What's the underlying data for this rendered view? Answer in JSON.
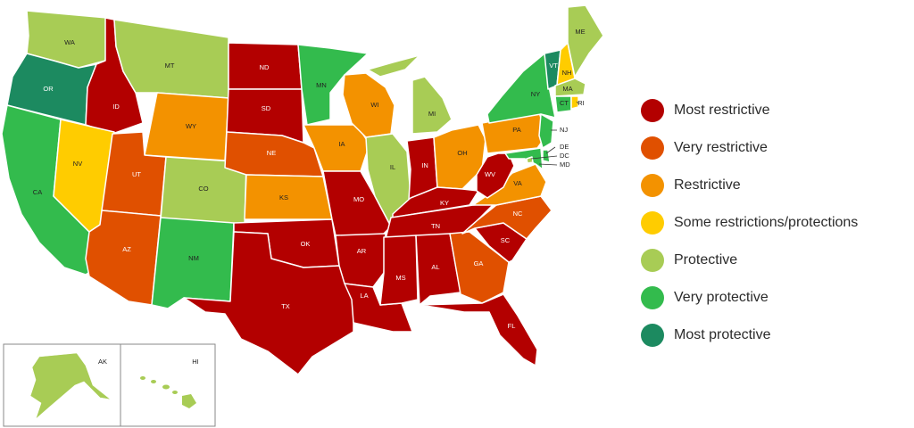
{
  "categories": [
    {
      "key": "most_restrictive",
      "label": "Most restrictive",
      "color": "#b30000"
    },
    {
      "key": "very_restrictive",
      "label": "Very restrictive",
      "color": "#e05000"
    },
    {
      "key": "restrictive",
      "label": "Restrictive",
      "color": "#f39200"
    },
    {
      "key": "some",
      "label": "Some restrictions/protections",
      "color": "#ffcc00"
    },
    {
      "key": "protective",
      "label": "Protective",
      "color": "#a8cc55"
    },
    {
      "key": "very_protective",
      "label": "Very protective",
      "color": "#33bb4d"
    },
    {
      "key": "most_protective",
      "label": "Most protective",
      "color": "#1c8a60"
    }
  ],
  "states": [
    {
      "code": "WA",
      "label": "WA",
      "category": "protective"
    },
    {
      "code": "OR",
      "label": "OR",
      "category": "most_protective"
    },
    {
      "code": "CA",
      "label": "CA",
      "category": "very_protective"
    },
    {
      "code": "ID",
      "label": "ID",
      "category": "most_restrictive"
    },
    {
      "code": "NV",
      "label": "NV",
      "category": "some"
    },
    {
      "code": "MT",
      "label": "MT",
      "category": "protective"
    },
    {
      "code": "WY",
      "label": "WY",
      "category": "restrictive"
    },
    {
      "code": "UT",
      "label": "UT",
      "category": "very_restrictive"
    },
    {
      "code": "AZ",
      "label": "AZ",
      "category": "very_restrictive"
    },
    {
      "code": "CO",
      "label": "CO",
      "category": "protective"
    },
    {
      "code": "NM",
      "label": "NM",
      "category": "very_protective"
    },
    {
      "code": "ND",
      "label": "ND",
      "category": "most_restrictive"
    },
    {
      "code": "SD",
      "label": "SD",
      "category": "most_restrictive"
    },
    {
      "code": "NE",
      "label": "NE",
      "category": "very_restrictive"
    },
    {
      "code": "KS",
      "label": "KS",
      "category": "restrictive"
    },
    {
      "code": "OK",
      "label": "OK",
      "category": "most_restrictive"
    },
    {
      "code": "TX",
      "label": "TX",
      "category": "most_restrictive"
    },
    {
      "code": "MN",
      "label": "MN",
      "category": "very_protective"
    },
    {
      "code": "IA",
      "label": "IA",
      "category": "restrictive"
    },
    {
      "code": "MO",
      "label": "MO",
      "category": "most_restrictive"
    },
    {
      "code": "AR",
      "label": "AR",
      "category": "most_restrictive"
    },
    {
      "code": "LA",
      "label": "LA",
      "category": "most_restrictive"
    },
    {
      "code": "WI",
      "label": "WI",
      "category": "restrictive"
    },
    {
      "code": "IL",
      "label": "IL",
      "category": "protective"
    },
    {
      "code": "MI",
      "label": "MI",
      "category": "protective"
    },
    {
      "code": "IN",
      "label": "IN",
      "category": "most_restrictive"
    },
    {
      "code": "OH",
      "label": "OH",
      "category": "restrictive"
    },
    {
      "code": "KY",
      "label": "KY",
      "category": "most_restrictive"
    },
    {
      "code": "TN",
      "label": "TN",
      "category": "most_restrictive"
    },
    {
      "code": "MS",
      "label": "MS",
      "category": "most_restrictive"
    },
    {
      "code": "AL",
      "label": "AL",
      "category": "most_restrictive"
    },
    {
      "code": "GA",
      "label": "GA",
      "category": "very_restrictive"
    },
    {
      "code": "FL",
      "label": "FL",
      "category": "most_restrictive"
    },
    {
      "code": "SC",
      "label": "SC",
      "category": "most_restrictive"
    },
    {
      "code": "NC",
      "label": "NC",
      "category": "very_restrictive"
    },
    {
      "code": "VA",
      "label": "VA",
      "category": "restrictive"
    },
    {
      "code": "WV",
      "label": "WV",
      "category": "most_restrictive"
    },
    {
      "code": "PA",
      "label": "PA",
      "category": "restrictive"
    },
    {
      "code": "NY",
      "label": "NY",
      "category": "very_protective"
    },
    {
      "code": "VT",
      "label": "VT",
      "category": "most_protective"
    },
    {
      "code": "NH",
      "label": "NH",
      "category": "some"
    },
    {
      "code": "ME",
      "label": "ME",
      "category": "protective"
    },
    {
      "code": "MA",
      "label": "MA",
      "category": "protective"
    },
    {
      "code": "CT",
      "label": "CT",
      "category": "very_protective"
    },
    {
      "code": "RI",
      "label": "RI",
      "category": "some"
    },
    {
      "code": "NJ",
      "label": "NJ",
      "category": "very_protective"
    },
    {
      "code": "DE",
      "label": "DE",
      "category": "very_protective"
    },
    {
      "code": "MD",
      "label": "MD",
      "category": "very_protective"
    },
    {
      "code": "DC",
      "label": "DC",
      "category": "protective"
    },
    {
      "code": "AK",
      "label": "AK",
      "category": "protective"
    },
    {
      "code": "HI",
      "label": "HI",
      "category": "protective"
    }
  ]
}
